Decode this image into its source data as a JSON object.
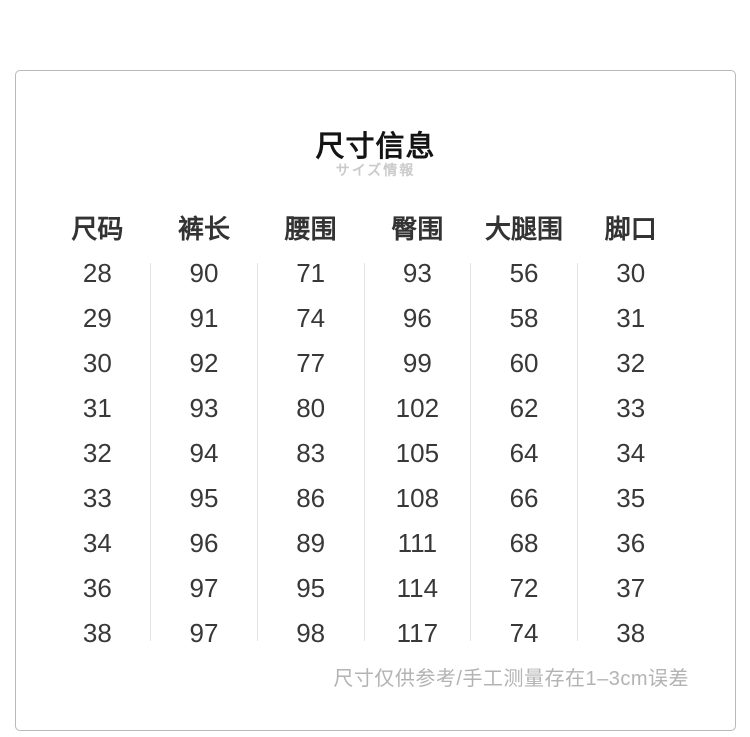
{
  "chart_data": {
    "type": "table",
    "title": "尺寸信息",
    "subtitle": "サイズ情報",
    "columns": [
      "尺码",
      "裤长",
      "腰围",
      "臀围",
      "大腿围",
      "脚口"
    ],
    "rows": [
      [
        28,
        90,
        71,
        93,
        56,
        30
      ],
      [
        29,
        91,
        74,
        96,
        58,
        31
      ],
      [
        30,
        92,
        77,
        99,
        60,
        32
      ],
      [
        31,
        93,
        80,
        102,
        62,
        33
      ],
      [
        32,
        94,
        83,
        105,
        64,
        34
      ],
      [
        33,
        95,
        86,
        108,
        66,
        35
      ],
      [
        34,
        96,
        89,
        111,
        68,
        36
      ],
      [
        36,
        97,
        95,
        114,
        72,
        37
      ],
      [
        38,
        97,
        98,
        117,
        74,
        38
      ]
    ],
    "footnote": "尺寸仅供参考/手工测量存在1–3cm误差",
    "layout_hints": {
      "grid": "vertical-dividers-only",
      "header_bold": true
    }
  },
  "colors": {
    "card_border": "#b9b9b9",
    "column_divider": "#e4e4e4",
    "title_text": "#141414",
    "subtitle_text": "#cbcbcb",
    "header_text": "#333333",
    "cell_text": "#383838",
    "footnote_text": "#b3b3b3",
    "background": "#ffffff"
  }
}
